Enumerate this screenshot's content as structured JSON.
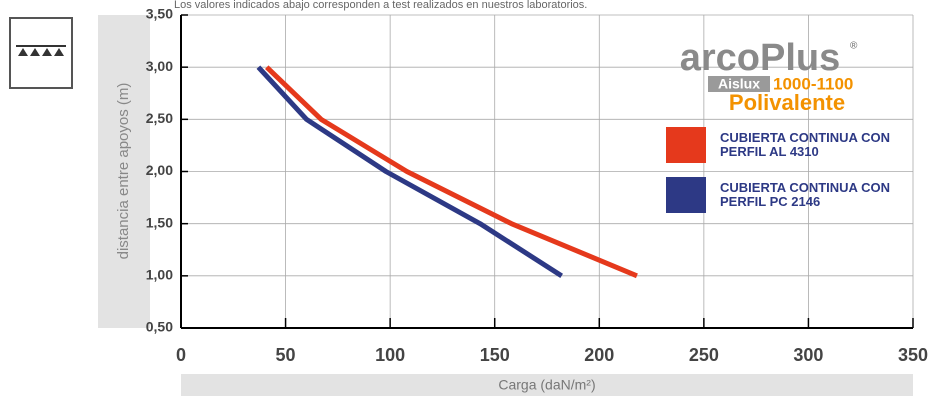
{
  "note": "Los valores indicados abajo corresponden a test realizados en nuestros laboratorios.",
  "logo": {
    "brand": "arcoPlus",
    "mark": "®",
    "model_prefix": "Aislux",
    "model": "1000-1100",
    "variant": "Polivalente"
  },
  "chart_data": {
    "type": "line",
    "x_label": "Carga (daN/m²)",
    "y_label": "distancia entre apoyos (m)",
    "xlim": [
      0,
      350
    ],
    "xticks": [
      0,
      50,
      100,
      150,
      200,
      250,
      300,
      350
    ],
    "ylim": [
      0.5,
      3.5
    ],
    "yticks": [
      {
        "value": 0.5,
        "label": "0,50"
      },
      {
        "value": 1,
        "label": "1,00"
      },
      {
        "value": 1.5,
        "label": "1,50"
      },
      {
        "value": 2,
        "label": "2,00"
      },
      {
        "value": 2.5,
        "label": "2,50"
      },
      {
        "value": 3,
        "label": "3,00"
      },
      {
        "value": 3.5,
        "label": "3,50"
      }
    ],
    "grid": true,
    "series": [
      {
        "name": "CUBIERTA CONTINUA CON PERFIL AL 4310",
        "color": "#e5391c",
        "x": [
          41,
          67,
          108,
          158,
          218
        ],
        "values": [
          3.0,
          2.5,
          2.0,
          1.5,
          1.0
        ]
      },
      {
        "name": "CUBIERTA CONTINUA CON PERFIL PC 2146",
        "color": "#2d3985",
        "x": [
          37,
          60,
          98,
          143,
          182
        ],
        "values": [
          3.0,
          2.5,
          2.0,
          1.5,
          1.0
        ]
      }
    ]
  }
}
